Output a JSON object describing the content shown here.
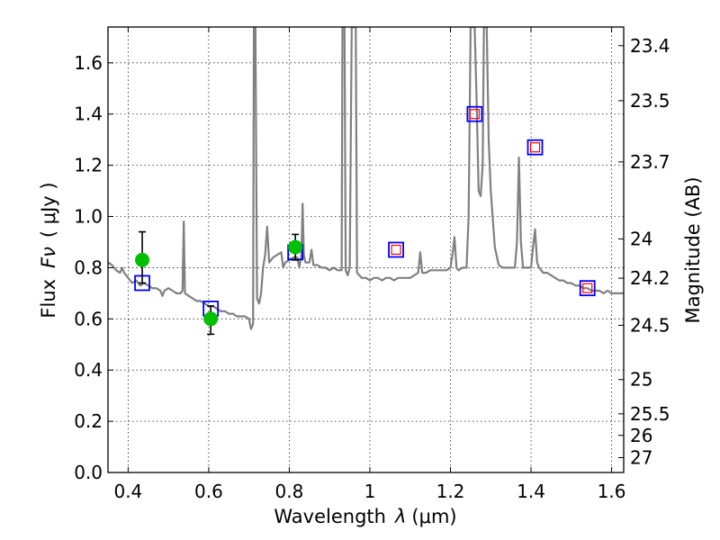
{
  "chart_data": {
    "type": "line",
    "xlabel": "Wavelength",
    "xlabel_symbol": "λ",
    "xlabel_unit": "(μm)",
    "ylabel": "Flux",
    "ylabel_symbol": "Fν",
    "ylabel_unit": "( μJy )",
    "ylabel_right": "Magnitude (AB)",
    "xlim": [
      0.35,
      1.63
    ],
    "ylim": [
      0.0,
      1.74
    ],
    "grid": true,
    "x_ticks": [
      {
        "value": 0.4,
        "label": "0.4"
      },
      {
        "value": 0.6,
        "label": "0.6"
      },
      {
        "value": 0.8,
        "label": "0.8"
      },
      {
        "value": 1.0,
        "label": "1"
      },
      {
        "value": 1.2,
        "label": "1.2"
      },
      {
        "value": 1.4,
        "label": "1.4"
      },
      {
        "value": 1.6,
        "label": "1.6"
      }
    ],
    "y_ticks": [
      {
        "value": 0.0,
        "label": "0.0"
      },
      {
        "value": 0.2,
        "label": "0.2"
      },
      {
        "value": 0.4,
        "label": "0.4"
      },
      {
        "value": 0.6,
        "label": "0.6"
      },
      {
        "value": 0.8,
        "label": "0.8"
      },
      {
        "value": 1.0,
        "label": "1.0"
      },
      {
        "value": 1.2,
        "label": "1.2"
      },
      {
        "value": 1.4,
        "label": "1.4"
      },
      {
        "value": 1.6,
        "label": "1.6"
      }
    ],
    "mag_ticks": [
      {
        "flux": 1.667,
        "label": "23.4"
      },
      {
        "flux": 1.452,
        "label": "23.5"
      },
      {
        "flux": 1.213,
        "label": "23.7"
      },
      {
        "flux": 0.912,
        "label": "24"
      },
      {
        "flux": 0.759,
        "label": "24.2"
      },
      {
        "flux": 0.575,
        "label": "24.5"
      },
      {
        "flux": 0.363,
        "label": "25"
      },
      {
        "flux": 0.229,
        "label": "25.5"
      },
      {
        "flux": 0.145,
        "label": "26"
      },
      {
        "flux": 0.058,
        "label": "27"
      }
    ],
    "colors": {
      "spectrum": "#808080",
      "observed": "#00c000",
      "model_box": "#0000ff",
      "model_inner": "#ff0000",
      "errorbar": "#000000"
    },
    "series": [
      {
        "name": "spectrum",
        "type": "line",
        "points": [
          [
            0.35,
            0.82
          ],
          [
            0.36,
            0.81
          ],
          [
            0.37,
            0.79
          ],
          [
            0.38,
            0.78
          ],
          [
            0.385,
            0.8
          ],
          [
            0.39,
            0.78
          ],
          [
            0.4,
            0.76
          ],
          [
            0.41,
            0.74
          ],
          [
            0.42,
            0.75
          ],
          [
            0.43,
            0.73
          ],
          [
            0.44,
            0.74
          ],
          [
            0.45,
            0.73
          ],
          [
            0.46,
            0.72
          ],
          [
            0.47,
            0.72
          ],
          [
            0.48,
            0.71
          ],
          [
            0.485,
            0.69
          ],
          [
            0.49,
            0.71
          ],
          [
            0.5,
            0.72
          ],
          [
            0.51,
            0.71
          ],
          [
            0.52,
            0.7
          ],
          [
            0.53,
            0.7
          ],
          [
            0.535,
            0.71
          ],
          [
            0.538,
            0.98
          ],
          [
            0.541,
            0.7
          ],
          [
            0.55,
            0.69
          ],
          [
            0.56,
            0.68
          ],
          [
            0.57,
            0.67
          ],
          [
            0.58,
            0.67
          ],
          [
            0.59,
            0.66
          ],
          [
            0.6,
            0.65
          ],
          [
            0.61,
            0.65
          ],
          [
            0.62,
            0.64
          ],
          [
            0.63,
            0.63
          ],
          [
            0.64,
            0.63
          ],
          [
            0.65,
            0.62
          ],
          [
            0.66,
            0.62
          ],
          [
            0.67,
            0.61
          ],
          [
            0.68,
            0.61
          ],
          [
            0.69,
            0.61
          ],
          [
            0.7,
            0.6
          ],
          [
            0.705,
            0.56
          ],
          [
            0.71,
            0.58
          ],
          [
            0.712,
            1.74
          ],
          [
            0.716,
            1.74
          ],
          [
            0.72,
            0.68
          ],
          [
            0.725,
            0.66
          ],
          [
            0.73,
            0.7
          ],
          [
            0.735,
            0.8
          ],
          [
            0.74,
            0.85
          ],
          [
            0.745,
            0.96
          ],
          [
            0.75,
            0.82
          ],
          [
            0.76,
            0.84
          ],
          [
            0.77,
            0.85
          ],
          [
            0.78,
            0.86
          ],
          [
            0.785,
            0.8
          ],
          [
            0.79,
            0.82
          ],
          [
            0.8,
            0.83
          ],
          [
            0.81,
            0.84
          ],
          [
            0.82,
            0.84
          ],
          [
            0.825,
            0.8
          ],
          [
            0.83,
            0.85
          ],
          [
            0.833,
            1.05
          ],
          [
            0.836,
            0.85
          ],
          [
            0.84,
            0.82
          ],
          [
            0.85,
            0.82
          ],
          [
            0.855,
            0.87
          ],
          [
            0.86,
            0.81
          ],
          [
            0.87,
            0.81
          ],
          [
            0.88,
            0.8
          ],
          [
            0.89,
            0.8
          ],
          [
            0.9,
            0.79
          ],
          [
            0.91,
            0.8
          ],
          [
            0.92,
            0.79
          ],
          [
            0.93,
            0.79
          ],
          [
            0.932,
            1.74
          ],
          [
            0.937,
            1.74
          ],
          [
            0.94,
            0.79
          ],
          [
            0.945,
            0.77
          ],
          [
            0.95,
            0.8
          ],
          [
            0.955,
            1.74
          ],
          [
            0.965,
            1.74
          ],
          [
            0.968,
            0.78
          ],
          [
            0.98,
            0.76
          ],
          [
            0.99,
            0.76
          ],
          [
            1.0,
            0.75
          ],
          [
            1.01,
            0.76
          ],
          [
            1.02,
            0.76
          ],
          [
            1.03,
            0.75
          ],
          [
            1.04,
            0.76
          ],
          [
            1.05,
            0.76
          ],
          [
            1.06,
            0.75
          ],
          [
            1.07,
            0.76
          ],
          [
            1.08,
            0.76
          ],
          [
            1.09,
            0.76
          ],
          [
            1.1,
            0.76
          ],
          [
            1.11,
            0.77
          ],
          [
            1.12,
            0.78
          ],
          [
            1.125,
            0.86
          ],
          [
            1.13,
            0.78
          ],
          [
            1.14,
            0.78
          ],
          [
            1.15,
            0.79
          ],
          [
            1.16,
            0.79
          ],
          [
            1.17,
            0.79
          ],
          [
            1.18,
            0.79
          ],
          [
            1.19,
            0.79
          ],
          [
            1.2,
            0.8
          ],
          [
            1.205,
            0.85
          ],
          [
            1.21,
            0.92
          ],
          [
            1.215,
            0.8
          ],
          [
            1.22,
            0.79
          ],
          [
            1.23,
            0.8
          ],
          [
            1.24,
            0.8
          ],
          [
            1.245,
            1.0
          ],
          [
            1.25,
            1.74
          ],
          [
            1.26,
            1.74
          ],
          [
            1.265,
            1.45
          ],
          [
            1.27,
            1.1
          ],
          [
            1.275,
            1.08
          ],
          [
            1.28,
            1.2
          ],
          [
            1.283,
            1.74
          ],
          [
            1.29,
            1.74
          ],
          [
            1.295,
            1.3
          ],
          [
            1.3,
            1.1
          ],
          [
            1.31,
            0.88
          ],
          [
            1.32,
            0.81
          ],
          [
            1.33,
            0.8
          ],
          [
            1.34,
            0.8
          ],
          [
            1.35,
            0.8
          ],
          [
            1.36,
            0.8
          ],
          [
            1.365,
            0.9
          ],
          [
            1.37,
            1.23
          ],
          [
            1.375,
            0.9
          ],
          [
            1.38,
            0.8
          ],
          [
            1.39,
            0.8
          ],
          [
            1.4,
            0.8
          ],
          [
            1.405,
            0.88
          ],
          [
            1.41,
            0.95
          ],
          [
            1.415,
            0.82
          ],
          [
            1.42,
            0.8
          ],
          [
            1.43,
            0.78
          ],
          [
            1.44,
            0.78
          ],
          [
            1.45,
            0.77
          ],
          [
            1.46,
            0.76
          ],
          [
            1.47,
            0.75
          ],
          [
            1.48,
            0.75
          ],
          [
            1.49,
            0.74
          ],
          [
            1.5,
            0.74
          ],
          [
            1.51,
            0.73
          ],
          [
            1.52,
            0.73
          ],
          [
            1.53,
            0.72
          ],
          [
            1.54,
            0.72
          ],
          [
            1.55,
            0.71
          ],
          [
            1.56,
            0.71
          ],
          [
            1.57,
            0.71
          ],
          [
            1.58,
            0.7
          ],
          [
            1.59,
            0.71
          ],
          [
            1.6,
            0.7
          ],
          [
            1.61,
            0.7
          ],
          [
            1.62,
            0.7
          ],
          [
            1.63,
            0.7
          ]
        ]
      },
      {
        "name": "observed photometry",
        "type": "scatter",
        "marker": "circle",
        "points": [
          {
            "x": 0.435,
            "y": 0.83,
            "err_low": 0.74,
            "err_high": 0.94
          },
          {
            "x": 0.605,
            "y": 0.6,
            "err_low": 0.54,
            "err_high": 0.65
          },
          {
            "x": 0.815,
            "y": 0.88,
            "err_low": 0.83,
            "err_high": 0.93
          }
        ]
      },
      {
        "name": "model photometry",
        "type": "scatter",
        "marker": "square",
        "points": [
          {
            "x": 0.435,
            "y": 0.74,
            "inner": false
          },
          {
            "x": 0.605,
            "y": 0.64,
            "inner": false
          },
          {
            "x": 0.815,
            "y": 0.86,
            "inner": false
          },
          {
            "x": 1.065,
            "y": 0.87,
            "inner": true
          },
          {
            "x": 1.26,
            "y": 1.4,
            "inner": true
          },
          {
            "x": 1.41,
            "y": 1.27,
            "inner": true
          },
          {
            "x": 1.54,
            "y": 0.72,
            "inner": true
          }
        ]
      }
    ]
  }
}
